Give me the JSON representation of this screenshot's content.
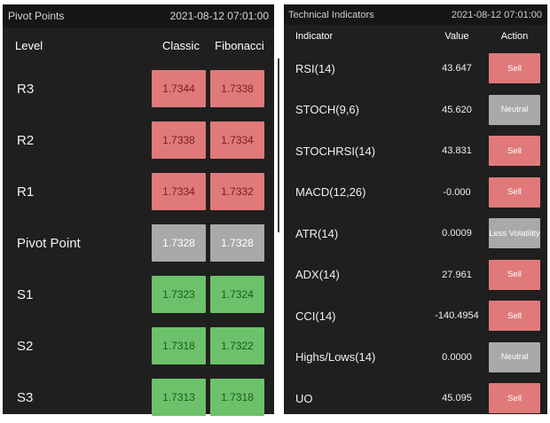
{
  "pivot": {
    "title": "Pivot Points",
    "timestamp": "2021-08-12 07:01:00",
    "columns": {
      "level": "Level",
      "classic": "Classic",
      "fibonacci": "Fibonacci"
    },
    "rows": [
      {
        "level": "R3",
        "classic": "1.7344",
        "fibonacci": "1.7338",
        "status": "red"
      },
      {
        "level": "R2",
        "classic": "1.7338",
        "fibonacci": "1.7334",
        "status": "red"
      },
      {
        "level": "R1",
        "classic": "1.7334",
        "fibonacci": "1.7332",
        "status": "red"
      },
      {
        "level": "Pivot Point",
        "classic": "1.7328",
        "fibonacci": "1.7328",
        "status": "grey"
      },
      {
        "level": "S1",
        "classic": "1.7323",
        "fibonacci": "1.7324",
        "status": "green"
      },
      {
        "level": "S2",
        "classic": "1.7318",
        "fibonacci": "1.7322",
        "status": "green"
      },
      {
        "level": "S3",
        "classic": "1.7313",
        "fibonacci": "1.7318",
        "status": "green"
      }
    ]
  },
  "tech": {
    "title": "Technical Indicators",
    "timestamp": "2021-08-12 07:01:00",
    "columns": {
      "indicator": "Indicator",
      "value": "Value",
      "action": "Action"
    },
    "rows": [
      {
        "indicator": "RSI(14)",
        "value": "43.647",
        "action": "Sell",
        "status": "sell"
      },
      {
        "indicator": "STOCH(9,6)",
        "value": "45.620",
        "action": "Neutral",
        "status": "neutral"
      },
      {
        "indicator": "STOCHRSI(14)",
        "value": "43.831",
        "action": "Sell",
        "status": "sell"
      },
      {
        "indicator": "MACD(12,26)",
        "value": "-0.000",
        "action": "Sell",
        "status": "sell"
      },
      {
        "indicator": "ATR(14)",
        "value": "0.0009",
        "action": "Less Volatility",
        "status": "neutral"
      },
      {
        "indicator": "ADX(14)",
        "value": "27.961",
        "action": "Sell",
        "status": "sell"
      },
      {
        "indicator": "CCI(14)",
        "value": "-140.4954",
        "action": "Sell",
        "status": "sell"
      },
      {
        "indicator": "Highs/Lows(14)",
        "value": "0.0000",
        "action": "Neutral",
        "status": "neutral"
      },
      {
        "indicator": "UO",
        "value": "45.095",
        "action": "Sell",
        "status": "sell"
      }
    ]
  },
  "colors": {
    "panel_bg": "#1f1f1f",
    "header_bg": "#161616",
    "sell_red": "#e07a7a",
    "neutral_grey": "#a9a9a9",
    "buy_green": "#6cc26a"
  }
}
